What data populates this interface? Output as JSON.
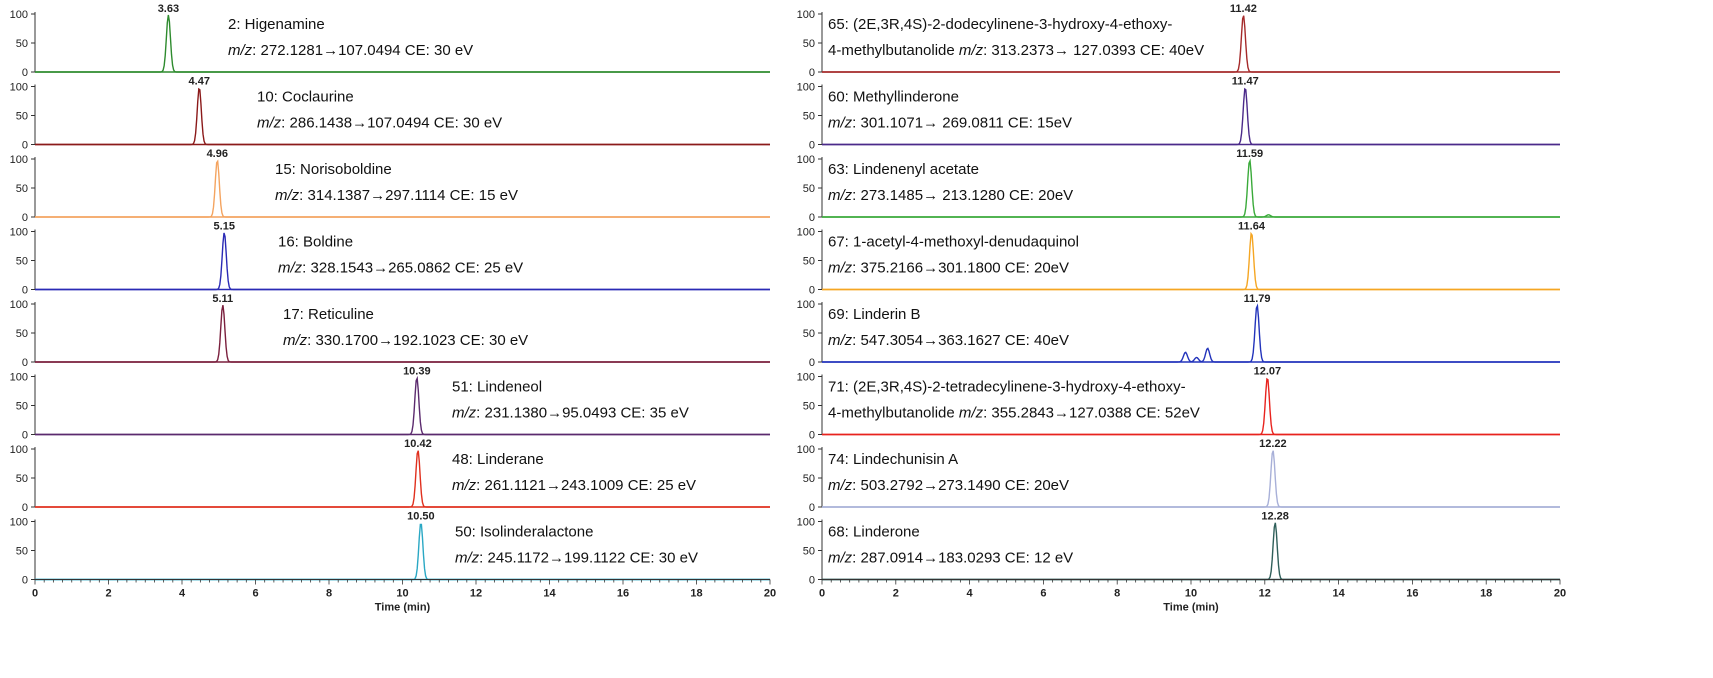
{
  "chart_data": [
    {
      "type": "line",
      "xlabel": "Time (min)",
      "xlim": [
        0,
        20
      ],
      "xticks": [
        0,
        2,
        4,
        6,
        8,
        10,
        12,
        14,
        16,
        18,
        20
      ],
      "ylim": [
        0,
        100
      ],
      "yticks": [
        0,
        50,
        100
      ],
      "traces": [
        {
          "compound": "2: Higenamine",
          "ion": [
            "m/z",
            ": 272.1281→107.0494  CE: 30 eV"
          ],
          "rt": 3.63,
          "rt_label": "3.63",
          "color": "#2e8b2e",
          "peaks": [
            {
              "x": 3.63,
              "y": 100
            }
          ]
        },
        {
          "compound": "10: Coclaurine",
          "ion": [
            "m/z",
            ": 286.1438→107.0494  CE: 30 eV"
          ],
          "rt": 4.47,
          "rt_label": "4.47",
          "color": "#8b1a1a",
          "peaks": [
            {
              "x": 4.47,
              "y": 100
            }
          ]
        },
        {
          "compound": "15: Norisoboldine",
          "ion": [
            "m/z",
            ": 314.1387→297.1114  CE: 15 eV"
          ],
          "rt": 4.96,
          "rt_label": "4.96",
          "color": "#f4a460",
          "peaks": [
            {
              "x": 4.96,
              "y": 100
            }
          ]
        },
        {
          "compound": "16: Boldine",
          "ion": [
            "m/z",
            ": 328.1543→265.0862  CE: 25 eV"
          ],
          "rt": 5.15,
          "rt_label": "5.15",
          "color": "#2a2ab5",
          "peaks": [
            {
              "x": 5.15,
              "y": 100
            }
          ]
        },
        {
          "compound": "17: Reticuline",
          "ion": [
            "m/z",
            ": 330.1700→192.1023  CE: 30 eV"
          ],
          "rt": 5.11,
          "rt_label": "5.11",
          "color": "#7a1f3d",
          "peaks": [
            {
              "x": 5.11,
              "y": 100
            }
          ]
        },
        {
          "compound": "51: Lindeneol",
          "ion": [
            "m/z",
            ": 231.1380→95.0493 CE: 35 eV"
          ],
          "rt": 10.39,
          "rt_label": "10.39",
          "color": "#5b2a6e",
          "peaks": [
            {
              "x": 10.39,
              "y": 100
            }
          ]
        },
        {
          "compound": "48: Linderane",
          "ion": [
            "m/z",
            ": 261.1121→243.1009 CE: 25 eV"
          ],
          "rt": 10.42,
          "rt_label": "10.42",
          "color": "#e0301e",
          "peaks": [
            {
              "x": 10.42,
              "y": 100
            }
          ]
        },
        {
          "compound": "50: Isolinderalactone",
          "ion": [
            "m/z",
            ": 245.1172→199.1122 CE: 30 eV"
          ],
          "rt": 10.5,
          "rt_label": "10.50",
          "color": "#2aa8c4",
          "peaks": [
            {
              "x": 10.5,
              "y": 100
            }
          ]
        }
      ]
    },
    {
      "type": "line",
      "xlabel": "Time (min)",
      "xlim": [
        0,
        20
      ],
      "xticks": [
        0,
        2,
        4,
        6,
        8,
        10,
        12,
        14,
        16,
        18,
        20
      ],
      "ylim": [
        0,
        100
      ],
      "yticks": [
        0,
        50,
        100
      ],
      "traces": [
        {
          "compound": "65: (2E,3R,4S)-2-dodecylinene-3-hydroxy-4-ethoxy-",
          "ion": [
            "4-methylbutanolide  ",
            "m/z",
            ": 313.2373→ 127.0393 CE: 40eV"
          ],
          "rt": 11.42,
          "rt_label": "11.42",
          "color": "#a52a2a",
          "peaks": [
            {
              "x": 11.42,
              "y": 100
            }
          ]
        },
        {
          "compound": "60: Methyllinderone",
          "ion": [
            "m/z",
            ": 301.1071→ 269.0811 CE: 15eV"
          ],
          "rt": 11.47,
          "rt_label": "11.47",
          "color": "#4b2a8a",
          "peaks": [
            {
              "x": 11.47,
              "y": 100
            }
          ]
        },
        {
          "compound": "63: Lindenenyl acetate",
          "ion": [
            "m/z",
            ": 273.1485→ 213.1280 CE: 20eV"
          ],
          "rt": 11.59,
          "rt_label": "11.59",
          "color": "#3aaa3a",
          "peaks": [
            {
              "x": 11.59,
              "y": 100
            },
            {
              "x": 12.1,
              "y": 4
            }
          ]
        },
        {
          "compound": "67: 1-acetyl-4-methoxyl-denudaquinol",
          "ion": [
            "m/z",
            ": 375.2166→301.1800 CE: 20eV"
          ],
          "rt": 11.64,
          "rt_label": "11.64",
          "color": "#f5a623",
          "peaks": [
            {
              "x": 11.64,
              "y": 100
            }
          ]
        },
        {
          "compound": "69: Linderin B",
          "ion": [
            "m/z",
            ": 547.3054→363.1627 CE: 40eV"
          ],
          "rt": 11.79,
          "rt_label": "11.79",
          "color": "#2233bb",
          "peaks": [
            {
              "x": 9.85,
              "y": 17
            },
            {
              "x": 10.15,
              "y": 8
            },
            {
              "x": 10.45,
              "y": 24
            },
            {
              "x": 11.79,
              "y": 100
            }
          ]
        },
        {
          "compound": "71: (2E,3R,4S)-2-tetradecylinene-3-hydroxy-4-ethoxy-",
          "ion": [
            "4-methylbutanolide ",
            "m/z",
            ": 355.2843→127.0388 CE: 52eV"
          ],
          "rt": 12.07,
          "rt_label": "12.07",
          "color": "#e8231e",
          "peaks": [
            {
              "x": 12.07,
              "y": 100
            }
          ]
        },
        {
          "compound": "74: Lindechunisin A",
          "ion": [
            "m/z",
            ": 503.2792→273.1490 CE: 20eV"
          ],
          "rt": 12.22,
          "rt_label": "12.22",
          "color": "#a8b0d8",
          "peaks": [
            {
              "x": 12.22,
              "y": 100
            }
          ]
        },
        {
          "compound": "68: Linderone",
          "ion": [
            "m/z",
            ": 287.0914→183.0293 CE: 12 eV"
          ],
          "rt": 12.28,
          "rt_label": "12.28",
          "color": "#2f5f5a",
          "peaks": [
            {
              "x": 12.28,
              "y": 100
            }
          ]
        }
      ]
    }
  ]
}
